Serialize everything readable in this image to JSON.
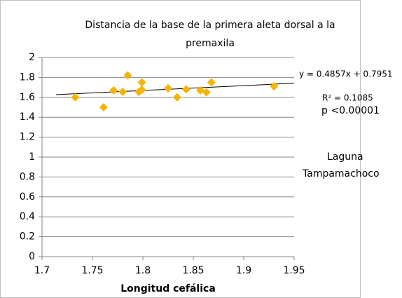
{
  "chart_data": {
    "type": "scatter",
    "title": [
      "Distancia de la base de la primera aleta dorsal a la",
      "premaxila"
    ],
    "x_label": "Longitud cefálica",
    "x": [
      1.733,
      1.761,
      1.771,
      1.78,
      1.785,
      1.796,
      1.799,
      1.799,
      1.825,
      1.834,
      1.843,
      1.857,
      1.863,
      1.868,
      1.93
    ],
    "values": [
      1.6,
      1.5,
      1.67,
      1.655,
      1.82,
      1.655,
      1.675,
      1.75,
      1.69,
      1.6,
      1.68,
      1.67,
      1.65,
      1.75,
      1.71
    ],
    "color": "#f5b400",
    "trendline": {
      "x": [
        1.714,
        1.95
      ],
      "values": [
        1.627,
        1.742
      ],
      "color": "#000000"
    },
    "annotations": [
      "y = 0.4857x + 0.7951",
      "R² = 0.1085",
      "p <0.00001",
      "Laguna",
      "Tampamachoco"
    ],
    "xlim": [
      1.7,
      1.95
    ],
    "xticks": [
      1.7,
      1.75,
      1.8,
      1.85,
      1.9,
      1.95
    ],
    "ylim": [
      0,
      2
    ],
    "yticks": [
      0,
      0.2,
      0.4,
      0.6,
      0.8,
      1,
      1.2,
      1.4,
      1.6,
      1.8,
      2
    ],
    "grid": true
  }
}
